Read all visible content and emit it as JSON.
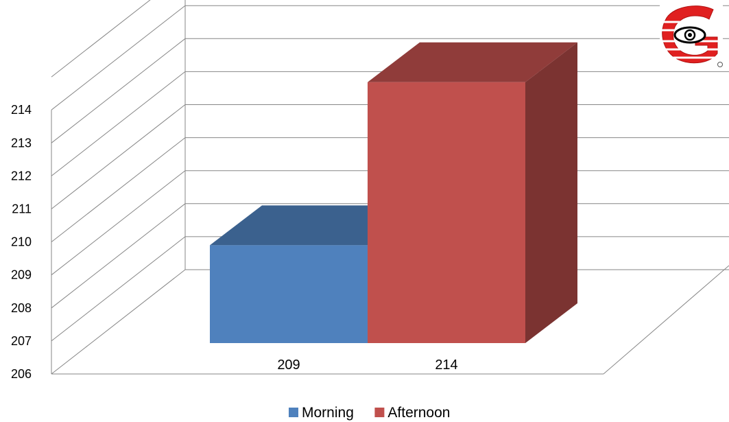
{
  "chart_data": {
    "type": "bar",
    "style": "3d-column",
    "categories": [
      ""
    ],
    "series": [
      {
        "name": "Morning",
        "values": [
          209
        ],
        "color": "#4F81BD"
      },
      {
        "name": "Afternoon",
        "values": [
          214
        ],
        "color": "#C0504D"
      }
    ],
    "data_labels": [
      "209",
      "214"
    ],
    "yticks": [
      206,
      207,
      208,
      209,
      210,
      211,
      212,
      213,
      214
    ],
    "ylim": [
      206,
      215
    ],
    "grid": true,
    "legend_position": "bottom",
    "title": "",
    "xlabel": "",
    "ylabel": ""
  },
  "logo": {
    "name": "eye-logo"
  }
}
